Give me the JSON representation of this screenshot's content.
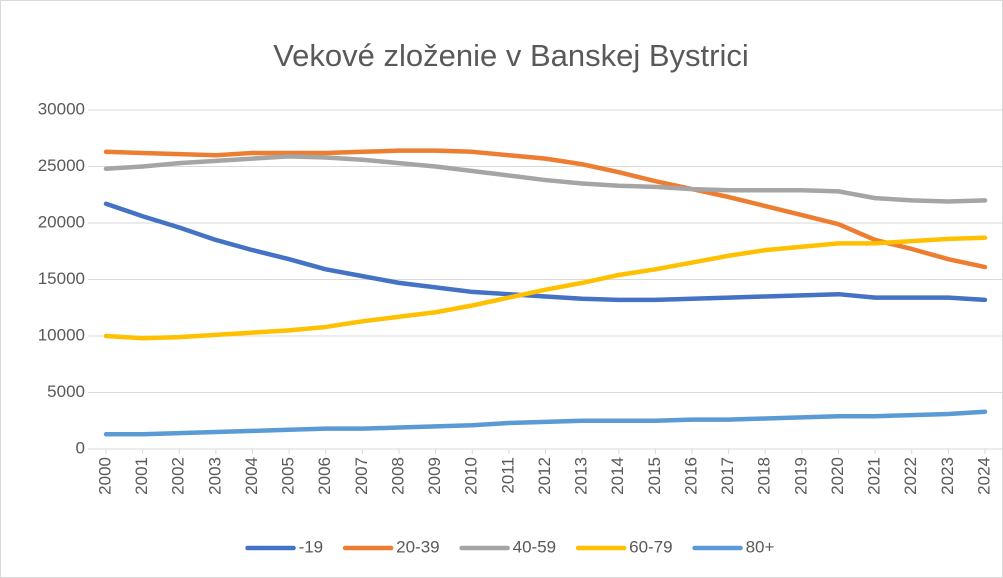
{
  "chart_data": {
    "type": "line",
    "title": "Vekové zloženie v Banskej Bystrici",
    "categories": [
      "2000",
      "2001",
      "2002",
      "2003",
      "2004",
      "2005",
      "2006",
      "2007",
      "2008",
      "2009",
      "2010",
      "2011",
      "2012",
      "2013",
      "2014",
      "2015",
      "2016",
      "2017",
      "2018",
      "2019",
      "2020",
      "2021",
      "2022",
      "2023",
      "2024"
    ],
    "series": [
      {
        "name": "-19",
        "color": "#4472c4",
        "values": [
          21700,
          20600,
          19600,
          18500,
          17600,
          16800,
          15900,
          15300,
          14700,
          14300,
          13900,
          13700,
          13500,
          13300,
          13200,
          13200,
          13300,
          13400,
          13500,
          13600,
          13700,
          13400,
          13400,
          13400,
          13200
        ]
      },
      {
        "name": "20-39",
        "color": "#ed7d31",
        "values": [
          26300,
          26200,
          26100,
          26000,
          26200,
          26200,
          26200,
          26300,
          26400,
          26400,
          26300,
          26000,
          25700,
          25200,
          24500,
          23700,
          23000,
          22300,
          21500,
          20700,
          19900,
          18500,
          17700,
          16800,
          16100
        ]
      },
      {
        "name": "40-59",
        "color": "#a5a5a5",
        "values": [
          24800,
          25000,
          25300,
          25500,
          25700,
          25900,
          25800,
          25600,
          25300,
          25000,
          24600,
          24200,
          23800,
          23500,
          23300,
          23200,
          23000,
          22900,
          22900,
          22900,
          22800,
          22200,
          22000,
          21900,
          22000
        ]
      },
      {
        "name": "60-79",
        "color": "#ffc000",
        "values": [
          10000,
          9800,
          9900,
          10100,
          10300,
          10500,
          10800,
          11300,
          11700,
          12100,
          12700,
          13400,
          14100,
          14700,
          15400,
          15900,
          16500,
          17100,
          17600,
          17900,
          18200,
          18200,
          18400,
          18600,
          18700
        ]
      },
      {
        "name": "80+",
        "color": "#5b9bd5",
        "values": [
          1300,
          1300,
          1400,
          1500,
          1600,
          1700,
          1800,
          1800,
          1900,
          2000,
          2100,
          2300,
          2400,
          2500,
          2500,
          2500,
          2600,
          2600,
          2700,
          2800,
          2900,
          2900,
          3000,
          3100,
          3300
        ]
      }
    ],
    "ylim": [
      0,
      30000
    ],
    "yticks": [
      0,
      5000,
      10000,
      15000,
      20000,
      25000,
      30000
    ],
    "grid": true,
    "legend": "bottom"
  }
}
